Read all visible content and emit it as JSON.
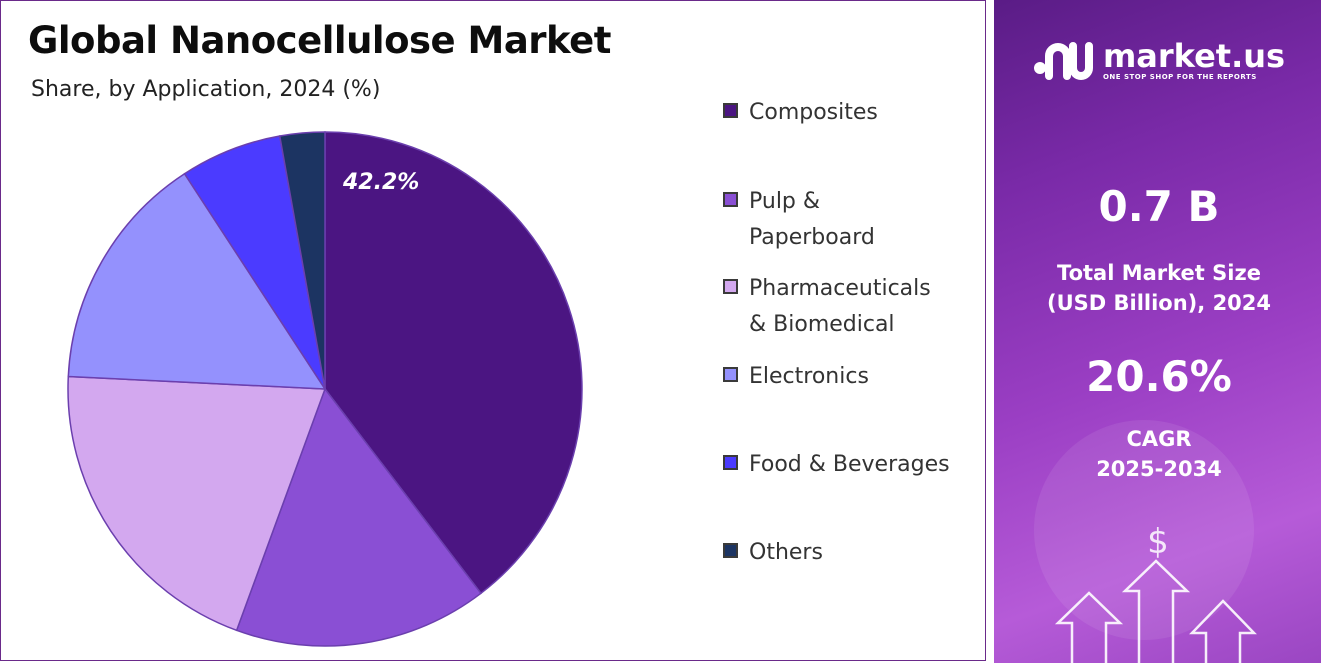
{
  "chart_data": {
    "type": "pie",
    "title": "Global Nanocellulose Market",
    "subtitle": "Share, by Application, 2024 (%)",
    "categories": [
      "Composites",
      "Pulp & Paperboard",
      "Pharmaceuticals & Biomedical",
      "Electronics",
      "Food & Beverages",
      "Others"
    ],
    "values": [
      42.2,
      17.0,
      21.5,
      16.0,
      6.8,
      3.0
    ],
    "data_labels": [
      "42.2%"
    ],
    "colors": [
      "#4b1582",
      "#8a4fd4",
      "#d3a8ef",
      "#9491fd",
      "#4b3bff",
      "#1c3462"
    ],
    "legend_position": "right"
  },
  "legend": {
    "items": [
      {
        "line1": "Composites",
        "line2": ""
      },
      {
        "line1": "Pulp &",
        "line2": "Paperboard"
      },
      {
        "line1": "Pharmaceuticals",
        "line2": "& Biomedical"
      },
      {
        "line1": "Electronics",
        "line2": ""
      },
      {
        "line1": "Food & Beverages",
        "line2": ""
      },
      {
        "line1": "Others",
        "line2": ""
      }
    ]
  },
  "brand": {
    "name": "market.us",
    "tagline": "ONE STOP SHOP FOR THE REPORTS",
    "icon": "market-us-logo-icon"
  },
  "stats": {
    "market_size_value": "0.7 B",
    "market_size_caption_line1": "Total Market Size",
    "market_size_caption_line2": "(USD Billion), 2024",
    "cagr_value": "20.6%",
    "cagr_caption_line1": "CAGR",
    "cagr_caption_line2": "2025-2034"
  },
  "decor": {
    "currency_symbol": "$",
    "icon": "growth-arrows-icon"
  },
  "colors": {
    "panel_accent": "#7a2aa8",
    "border": "#6a2a8a"
  }
}
